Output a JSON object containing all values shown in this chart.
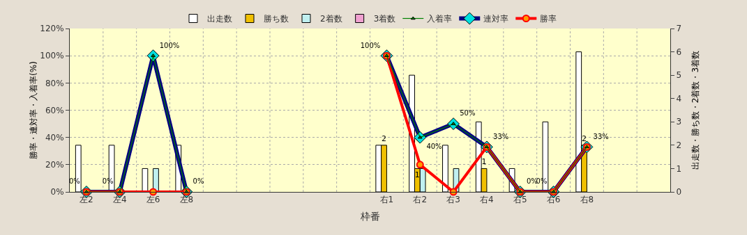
{
  "chart_data": {
    "type": "bar",
    "xlabel": "枠番",
    "ylabel": "勝率・連対率・入着率(%)",
    "y2label": "出走数・勝ち数・2着数・3着数",
    "categories": [
      "左2",
      "左4",
      "左6",
      "左8",
      null,
      null,
      null,
      null,
      null,
      "右1",
      "右2",
      "右3",
      "右4",
      "右5",
      "右6",
      "右8",
      null,
      null
    ],
    "series": [
      {
        "name": "出走数",
        "type": "bar",
        "axis": "y2",
        "color": "#ffffff",
        "values": [
          2,
          2,
          1,
          2,
          null,
          null,
          null,
          null,
          null,
          2,
          5,
          2,
          3,
          1,
          3,
          6,
          null,
          null
        ]
      },
      {
        "name": "勝ち数",
        "type": "bar",
        "axis": "y2",
        "color": "#f0c000",
        "values": [
          null,
          null,
          null,
          null,
          null,
          null,
          null,
          null,
          null,
          2,
          1,
          null,
          1,
          null,
          null,
          2,
          null,
          null
        ],
        "value_labels": [
          null,
          null,
          null,
          null,
          null,
          null,
          null,
          null,
          null,
          "2",
          "1",
          null,
          "1",
          null,
          null,
          "2",
          null,
          null
        ]
      },
      {
        "name": "2着数",
        "type": "bar",
        "axis": "y2",
        "color": "#c0f0f0",
        "values": [
          null,
          null,
          1,
          null,
          null,
          null,
          null,
          null,
          null,
          null,
          1,
          1,
          null,
          null,
          null,
          null,
          null,
          null
        ]
      },
      {
        "name": "3着数",
        "type": "bar",
        "axis": "y2",
        "color": "#f0a0d0",
        "values": [
          null,
          null,
          null,
          null,
          null,
          null,
          null,
          null,
          null,
          null,
          null,
          null,
          null,
          null,
          null,
          null,
          null,
          null
        ]
      },
      {
        "name": "入着率",
        "type": "line",
        "axis": "y",
        "color": "#008000",
        "marker": "triangle",
        "values": [
          0,
          0,
          100,
          0,
          null,
          null,
          null,
          null,
          null,
          100,
          40,
          50,
          33,
          0,
          0,
          33,
          null,
          null
        ]
      },
      {
        "name": "連対率",
        "type": "line",
        "axis": "y",
        "color": "#000080",
        "marker": "diamond",
        "values": [
          0,
          0,
          100,
          0,
          null,
          null,
          null,
          null,
          null,
          100,
          40,
          50,
          33,
          0,
          0,
          33,
          null,
          null
        ],
        "value_labels": [
          "0%",
          "0%",
          "100%",
          "0%",
          null,
          null,
          null,
          null,
          null,
          "100%",
          "40%",
          "50%",
          "33%",
          "0%",
          "0%",
          "33%",
          null,
          null
        ]
      },
      {
        "name": "勝率",
        "type": "line",
        "axis": "y",
        "color": "#ff0000",
        "marker": "circle",
        "values": [
          0,
          0,
          0,
          0,
          null,
          null,
          null,
          null,
          null,
          100,
          20,
          0,
          33,
          0,
          0,
          33,
          null,
          null
        ]
      }
    ],
    "ylim": [
      0,
      120
    ],
    "yticks": [
      {
        "value": 0,
        "label": "0%"
      },
      {
        "value": 20,
        "label": "20%"
      },
      {
        "value": 40,
        "label": "40%"
      },
      {
        "value": 60,
        "label": "60%"
      },
      {
        "value": 80,
        "label": "80%"
      },
      {
        "value": 100,
        "label": "100%"
      },
      {
        "value": 120,
        "label": "120%"
      }
    ],
    "y2lim": [
      0,
      7
    ],
    "y2ticks": [
      0,
      1,
      2,
      3,
      4,
      5,
      6,
      7
    ],
    "grid": true,
    "legend": "top"
  }
}
